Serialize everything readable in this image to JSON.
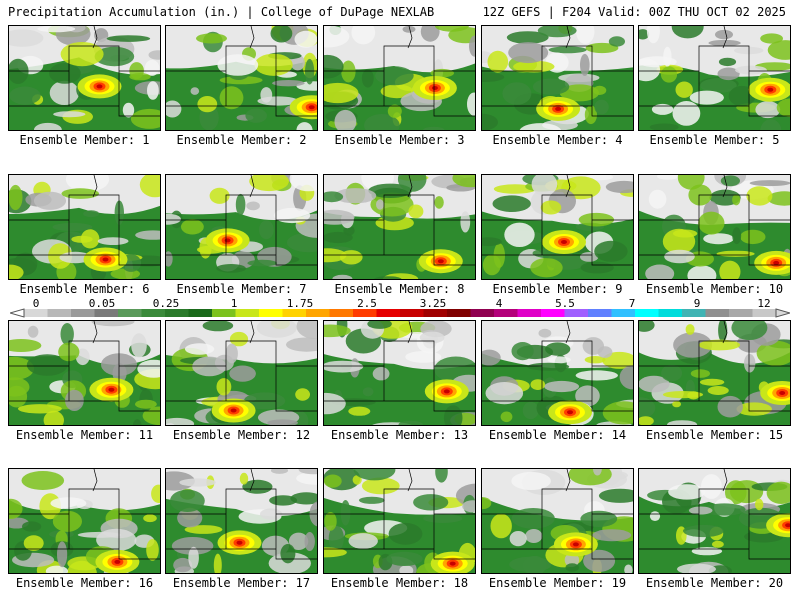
{
  "header": {
    "left": "Precipitation Accumulation (in.) | College of DuPage NEXLAB",
    "right": "12Z GEFS | F204 Valid: 00Z THU OCT 02 2025"
  },
  "colorbar": {
    "labels": [
      "0",
      "0.05",
      "0.25",
      "1",
      "1.75",
      "2.5",
      "3.25",
      "4",
      "5.5",
      "7",
      "9",
      "12"
    ],
    "colors": [
      "#d8d8d8",
      "#b8b8b8",
      "#9a9a9a",
      "#7a7a7a",
      "#5a9a5a",
      "#3a8a3a",
      "#2a7a2a",
      "#1a6a1a",
      "#7cc21c",
      "#c8e61a",
      "#ffff00",
      "#ffd200",
      "#ffa500",
      "#ff7800",
      "#ff3c00",
      "#e60000",
      "#c80000",
      "#a00000",
      "#800000",
      "#900050",
      "#b4007a",
      "#e000c8",
      "#ff00ff",
      "#a060ff",
      "#6080ff",
      "#30c0ff",
      "#00ffff",
      "#00dcdc",
      "#40b4b4",
      "#909090",
      "#a8a8a8",
      "#c8c8c8"
    ]
  },
  "members": [
    {
      "label": "Ensemble Member: 1"
    },
    {
      "label": "Ensemble Member: 2"
    },
    {
      "label": "Ensemble Member: 3"
    },
    {
      "label": "Ensemble Member: 4"
    },
    {
      "label": "Ensemble Member: 5"
    },
    {
      "label": "Ensemble Member: 6"
    },
    {
      "label": "Ensemble Member: 7"
    },
    {
      "label": "Ensemble Member: 8"
    },
    {
      "label": "Ensemble Member: 9"
    },
    {
      "label": "Ensemble Member: 10"
    },
    {
      "label": "Ensemble Member: 11"
    },
    {
      "label": "Ensemble Member: 12"
    },
    {
      "label": "Ensemble Member: 13"
    },
    {
      "label": "Ensemble Member: 14"
    },
    {
      "label": "Ensemble Member: 15"
    },
    {
      "label": "Ensemble Member: 16"
    },
    {
      "label": "Ensemble Member: 17"
    },
    {
      "label": "Ensemble Member: 18"
    },
    {
      "label": "Ensemble Member: 19"
    },
    {
      "label": "Ensemble Member: 20"
    }
  ]
}
